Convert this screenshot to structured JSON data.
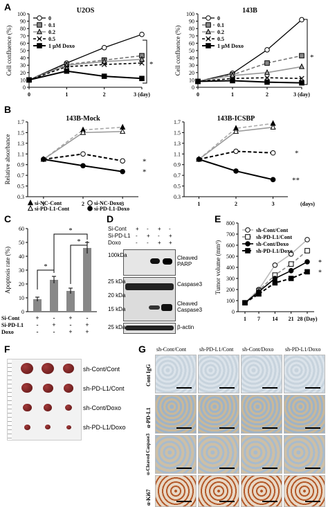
{
  "panels": {
    "A": "A",
    "B": "B",
    "C": "C",
    "D": "D",
    "E": "E",
    "F": "F",
    "G": "G"
  },
  "A_left": {
    "title": "U2OS",
    "ylabel": "Cell confluence (%)",
    "yticks": [
      "0",
      "10",
      "20",
      "30",
      "40",
      "50",
      "60",
      "70",
      "80",
      "90",
      "100"
    ],
    "xticks": [
      "0",
      "1",
      "2",
      "3 (day)"
    ],
    "legend": [
      "0",
      "0.1",
      "0.2",
      "0.5",
      "1 µM Doxo"
    ],
    "star": "*"
  },
  "A_right": {
    "title": "143B",
    "ylabel": "Cell confluence (%)",
    "yticks": [
      "0",
      "10",
      "20",
      "30",
      "40",
      "50",
      "60",
      "70",
      "80",
      "90",
      "100"
    ],
    "xticks": [
      "0",
      "1",
      "2",
      "3 (day)"
    ],
    "legend": [
      "0",
      "0.1",
      "0.2",
      "0.5",
      "1 µM Doxo"
    ],
    "star": "*"
  },
  "B_left": {
    "title": "143B-Mock",
    "ylabel": "Relative absorbance",
    "yticks": [
      "0.3",
      "0.5",
      "0.7",
      "0.9",
      "1.1",
      "1.3",
      "1.5",
      "1.7"
    ],
    "xticks": [
      "1",
      "2",
      "3"
    ],
    "stars": [
      "*",
      "*"
    ]
  },
  "B_right": {
    "title": "143B-ICSBP",
    "yticks": [
      "0.3",
      "0.5",
      "0.7",
      "0.9",
      "1.1",
      "1.3",
      "1.5",
      "1.7"
    ],
    "xticks": [
      "1",
      "2",
      "3"
    ],
    "xunit": "(days)",
    "stars": [
      "*",
      "**"
    ]
  },
  "B_legend": [
    "si-NC-Cont",
    "si-NC-Doxo",
    "si-PD-L1-Cont",
    "si-PD-L1-Doxo"
  ],
  "C": {
    "ylabel": "Apoptosis rate (%)",
    "yticks": [
      "0",
      "10",
      "20",
      "30",
      "40",
      "50",
      "60"
    ],
    "row_labels": [
      "Si-Cont",
      "Si-PD-L1",
      "Doxo"
    ],
    "signs": [
      [
        "+",
        "-",
        "+",
        "-"
      ],
      [
        "-",
        "+",
        "-",
        "+"
      ],
      [
        "-",
        "-",
        "+",
        "+"
      ]
    ],
    "stars": [
      "*",
      "*",
      "*"
    ]
  },
  "D": {
    "row_labels": [
      "Si-Cont",
      "Si-PD-L1",
      "Doxo"
    ],
    "signs": [
      [
        "+",
        "-",
        "+",
        "-"
      ],
      [
        "-",
        "+",
        "-",
        "+"
      ],
      [
        "-",
        "-",
        "+",
        "+"
      ]
    ],
    "markers": [
      "100kDa",
      "25 kDa",
      "20 kDa",
      "15 kDa",
      "25 kDa"
    ],
    "bands": [
      "Cleaved PARP",
      "Caspase3",
      "Cleaved Caspase3",
      "β-actin"
    ]
  },
  "E": {
    "ylabel": "Tumor volume (mm³)",
    "yticks": [
      "0",
      "100",
      "200",
      "300",
      "400",
      "500",
      "600",
      "700",
      "800"
    ],
    "xticks": [
      "1",
      "7",
      "14",
      "21",
      "28 (Day)"
    ],
    "legend": [
      "sh-Cont/Cont",
      "sh-PD-L1/Cont",
      "sh-Cont/Doxo",
      "sh-PD-L1/Doxo"
    ],
    "stars": [
      "*",
      "*"
    ]
  },
  "F": {
    "labels": [
      "sh-Cont/Cont",
      "sh-PD-L1/Cont",
      "sh-Cont/Doxo",
      "sh-PD-L1/Doxo"
    ]
  },
  "G": {
    "columns": [
      "sh-Cont/Cont",
      "sh-PD-L1/Cont",
      "sh-Cont/Doxo",
      "sh-PD-L1/Doxo"
    ],
    "rows": [
      "Cont IgG",
      "α-PD-L1",
      "α-Cleaved Caspase3",
      "α-Ki67"
    ]
  },
  "chart_data": [
    {
      "type": "line",
      "title": "U2OS",
      "xlabel": "(day)",
      "ylabel": "Cell confluence (%)",
      "x": [
        0,
        1,
        2,
        3
      ],
      "ylim": [
        0,
        100
      ],
      "series": [
        {
          "name": "0",
          "values": [
            10,
            33,
            54,
            72
          ]
        },
        {
          "name": "0.1",
          "values": [
            10,
            31,
            37,
            43
          ]
        },
        {
          "name": "0.2",
          "values": [
            10,
            30,
            35,
            38
          ]
        },
        {
          "name": "0.5",
          "values": [
            10,
            28,
            31,
            33
          ]
        },
        {
          "name": "1 µM Doxo",
          "values": [
            10,
            22,
            15,
            12
          ]
        }
      ],
      "colors": {
        "0": "#ffffff",
        "0.1": "#888888",
        "0.2": "#aaaaaa",
        "0.5": "#ffffff",
        "1 µM Doxo": "#000000"
      }
    },
    {
      "type": "line",
      "title": "143B",
      "xlabel": "(day)",
      "ylabel": "Cell confluence (%)",
      "x": [
        0,
        1,
        2,
        3
      ],
      "ylim": [
        0,
        100
      ],
      "series": [
        {
          "name": "0",
          "values": [
            8,
            19,
            51,
            92
          ]
        },
        {
          "name": "0.1",
          "values": [
            8,
            17,
            33,
            43
          ]
        },
        {
          "name": "0.2",
          "values": [
            8,
            16,
            20,
            28
          ]
        },
        {
          "name": "0.5",
          "values": [
            8,
            12,
            13,
            12
          ]
        },
        {
          "name": "1 µM Doxo",
          "values": [
            8,
            9,
            7,
            6
          ]
        }
      ]
    },
    {
      "type": "line",
      "title": "143B-Mock",
      "ylabel": "Relative absorbance",
      "xlabel": "(days)",
      "x": [
        1,
        2,
        3
      ],
      "ylim": [
        0.3,
        1.7
      ],
      "series": [
        {
          "name": "si-NC-Cont",
          "values": [
            1.0,
            1.55,
            1.6
          ]
        },
        {
          "name": "si-PD-L1-Cont",
          "values": [
            1.0,
            1.5,
            1.52
          ]
        },
        {
          "name": "si-NC-Doxo",
          "values": [
            1.0,
            1.1,
            0.97
          ]
        },
        {
          "name": "si-PD-L1-Doxo",
          "values": [
            1.0,
            0.88,
            0.77
          ]
        }
      ]
    },
    {
      "type": "line",
      "title": "143B-ICSBP",
      "ylabel": "Relative absorbance",
      "xlabel": "(days)",
      "x": [
        1,
        2,
        3
      ],
      "ylim": [
        0.3,
        1.7
      ],
      "series": [
        {
          "name": "si-NC-Cont",
          "values": [
            1.0,
            1.58,
            1.67
          ]
        },
        {
          "name": "si-PD-L1-Cont",
          "values": [
            1.0,
            1.52,
            1.6
          ]
        },
        {
          "name": "si-NC-Doxo",
          "values": [
            1.0,
            1.15,
            1.12
          ]
        },
        {
          "name": "si-PD-L1-Doxo",
          "values": [
            1.0,
            0.78,
            0.62
          ]
        }
      ]
    },
    {
      "type": "bar",
      "ylabel": "Apoptosis rate (%)",
      "ylim": [
        0,
        60
      ],
      "categories": [
        "Si-Cont",
        "Si-PD-L1",
        "Si-Cont+Doxo",
        "Si-PD-L1+Doxo"
      ],
      "values": [
        9,
        23,
        15,
        46
      ],
      "errors": [
        1.5,
        2.5,
        2,
        4
      ]
    },
    {
      "type": "line",
      "ylabel": "Tumor volume (mm³)",
      "xlabel": "(Day)",
      "x": [
        1,
        7,
        14,
        21,
        28
      ],
      "ylim": [
        0,
        800
      ],
      "series": [
        {
          "name": "sh-Cont/Cont",
          "values": [
            80,
            200,
            420,
            520,
            650
          ]
        },
        {
          "name": "sh-PD-L1/Cont",
          "values": [
            80,
            190,
            330,
            430,
            550
          ]
        },
        {
          "name": "sh-Cont/Doxo",
          "values": [
            80,
            180,
            300,
            370,
            450
          ]
        },
        {
          "name": "sh-PD-L1/Doxo",
          "values": [
            80,
            160,
            260,
            300,
            360
          ]
        }
      ]
    }
  ]
}
